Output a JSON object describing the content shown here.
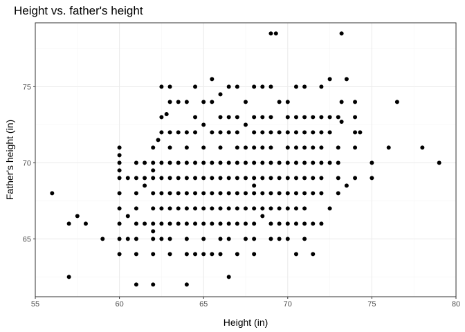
{
  "chart_data": {
    "type": "scatter",
    "title": "Height vs. father's height",
    "xlabel": "Height (in)",
    "ylabel": "Father's height (in)",
    "xlim": [
      55,
      80
    ],
    "ylim": [
      61.2,
      79.2
    ],
    "x_ticks": [
      55,
      60,
      65,
      70,
      75,
      80
    ],
    "y_ticks": [
      65,
      70,
      75
    ],
    "grid": true,
    "point_color": "#000000",
    "grid_major_color": "#ebebeb",
    "grid_minor_color": "#f5f5f5",
    "panel_border_color": "#333333",
    "points": [
      [
        56,
        68
      ],
      [
        57,
        66
      ],
      [
        57,
        62.5
      ],
      [
        57.5,
        66.5
      ],
      [
        58,
        66
      ],
      [
        59,
        65
      ],
      [
        60,
        71
      ],
      [
        60,
        70.5
      ],
      [
        60,
        70
      ],
      [
        60,
        69.5
      ],
      [
        60,
        69
      ],
      [
        60,
        68
      ],
      [
        60,
        67
      ],
      [
        60,
        66
      ],
      [
        60,
        65
      ],
      [
        60,
        64
      ],
      [
        60.5,
        69
      ],
      [
        60.5,
        66.5
      ],
      [
        60.5,
        65
      ],
      [
        61,
        70
      ],
      [
        61,
        69
      ],
      [
        61,
        68
      ],
      [
        61,
        67
      ],
      [
        61,
        66
      ],
      [
        61,
        65
      ],
      [
        61,
        64
      ],
      [
        61,
        62
      ],
      [
        61.5,
        70
      ],
      [
        61.5,
        69
      ],
      [
        61.5,
        68.5
      ],
      [
        61.5,
        66
      ],
      [
        62,
        71
      ],
      [
        62,
        70
      ],
      [
        62,
        69.5
      ],
      [
        62,
        69
      ],
      [
        62,
        68
      ],
      [
        62,
        67
      ],
      [
        62,
        66
      ],
      [
        62,
        65.5
      ],
      [
        62,
        65
      ],
      [
        62,
        64
      ],
      [
        62,
        62
      ],
      [
        62.3,
        71.5
      ],
      [
        62.5,
        75
      ],
      [
        62.5,
        73
      ],
      [
        62.5,
        72
      ],
      [
        62.5,
        70
      ],
      [
        62.5,
        69
      ],
      [
        62.5,
        68
      ],
      [
        62.5,
        67
      ],
      [
        62.5,
        66
      ],
      [
        62.5,
        65
      ],
      [
        62.8,
        73.2
      ],
      [
        63,
        75
      ],
      [
        63,
        74
      ],
      [
        63,
        72
      ],
      [
        63,
        71
      ],
      [
        63,
        70
      ],
      [
        63,
        69
      ],
      [
        63,
        68
      ],
      [
        63,
        67
      ],
      [
        63,
        66
      ],
      [
        63,
        65
      ],
      [
        63,
        64
      ],
      [
        63.5,
        74
      ],
      [
        63.5,
        72
      ],
      [
        63.5,
        70
      ],
      [
        63.5,
        69
      ],
      [
        63.5,
        68
      ],
      [
        63.5,
        67
      ],
      [
        63.5,
        66
      ],
      [
        64,
        74
      ],
      [
        64,
        72
      ],
      [
        64,
        71
      ],
      [
        64,
        70
      ],
      [
        64,
        69
      ],
      [
        64,
        68
      ],
      [
        64,
        67
      ],
      [
        64,
        66
      ],
      [
        64,
        65
      ],
      [
        64,
        64
      ],
      [
        64,
        62
      ],
      [
        64.5,
        75
      ],
      [
        64.5,
        73
      ],
      [
        64.5,
        72
      ],
      [
        64.5,
        70
      ],
      [
        64.5,
        69
      ],
      [
        64.5,
        68
      ],
      [
        64.5,
        67
      ],
      [
        64.5,
        66
      ],
      [
        64.5,
        64
      ],
      [
        65,
        74
      ],
      [
        65,
        72.5
      ],
      [
        65,
        71
      ],
      [
        65,
        70
      ],
      [
        65,
        69
      ],
      [
        65,
        68
      ],
      [
        65,
        67
      ],
      [
        65,
        66
      ],
      [
        65,
        65
      ],
      [
        65,
        64
      ],
      [
        65.5,
        75.5
      ],
      [
        65.5,
        74
      ],
      [
        65.5,
        72
      ],
      [
        65.5,
        70
      ],
      [
        65.5,
        69
      ],
      [
        65.5,
        68
      ],
      [
        65.5,
        67
      ],
      [
        65.5,
        66
      ],
      [
        65.5,
        64
      ],
      [
        66,
        74.5
      ],
      [
        66,
        73
      ],
      [
        66,
        72
      ],
      [
        66,
        71
      ],
      [
        66,
        70
      ],
      [
        66,
        69
      ],
      [
        66,
        68
      ],
      [
        66,
        67
      ],
      [
        66,
        66
      ],
      [
        66,
        65
      ],
      [
        66,
        64
      ],
      [
        66.5,
        75
      ],
      [
        66.5,
        73
      ],
      [
        66.5,
        72
      ],
      [
        66.5,
        70
      ],
      [
        66.5,
        69
      ],
      [
        66.5,
        68
      ],
      [
        66.5,
        67
      ],
      [
        66.5,
        66
      ],
      [
        66.5,
        65
      ],
      [
        66.5,
        62.5
      ],
      [
        67,
        75
      ],
      [
        67,
        73
      ],
      [
        67,
        72
      ],
      [
        67,
        71
      ],
      [
        67,
        70
      ],
      [
        67,
        69
      ],
      [
        67,
        68
      ],
      [
        67,
        67
      ],
      [
        67,
        66
      ],
      [
        67,
        64
      ],
      [
        67.5,
        74
      ],
      [
        67.5,
        72.5
      ],
      [
        67.5,
        71
      ],
      [
        67.5,
        70
      ],
      [
        67.5,
        69
      ],
      [
        67.5,
        68
      ],
      [
        67.5,
        67
      ],
      [
        67.5,
        66
      ],
      [
        67.5,
        65
      ],
      [
        68,
        75
      ],
      [
        68,
        73
      ],
      [
        68,
        72
      ],
      [
        68,
        71
      ],
      [
        68,
        70
      ],
      [
        68,
        69
      ],
      [
        68,
        68.5
      ],
      [
        68,
        68
      ],
      [
        68,
        67
      ],
      [
        68,
        66
      ],
      [
        68,
        65
      ],
      [
        68,
        64
      ],
      [
        68.5,
        75
      ],
      [
        68.5,
        73
      ],
      [
        68.5,
        72
      ],
      [
        68.5,
        71
      ],
      [
        68.5,
        70
      ],
      [
        68.5,
        69
      ],
      [
        68.5,
        68
      ],
      [
        68.5,
        67
      ],
      [
        68.5,
        66.5
      ],
      [
        69,
        78.5
      ],
      [
        69,
        75
      ],
      [
        69,
        73
      ],
      [
        69,
        72
      ],
      [
        69,
        71
      ],
      [
        69,
        70
      ],
      [
        69,
        69
      ],
      [
        69,
        68
      ],
      [
        69,
        67
      ],
      [
        69,
        66
      ],
      [
        69,
        65
      ],
      [
        69.3,
        78.5
      ],
      [
        69.5,
        74
      ],
      [
        69.5,
        72
      ],
      [
        69.5,
        70
      ],
      [
        69.5,
        69
      ],
      [
        69.5,
        68
      ],
      [
        69.5,
        67
      ],
      [
        69.5,
        66
      ],
      [
        69.5,
        65
      ],
      [
        70,
        74
      ],
      [
        70,
        73
      ],
      [
        70,
        72
      ],
      [
        70,
        71
      ],
      [
        70,
        70
      ],
      [
        70,
        69
      ],
      [
        70,
        68
      ],
      [
        70,
        67
      ],
      [
        70,
        66
      ],
      [
        70,
        65
      ],
      [
        70.5,
        75
      ],
      [
        70.5,
        73
      ],
      [
        70.5,
        72
      ],
      [
        70.5,
        71
      ],
      [
        70.5,
        70
      ],
      [
        70.5,
        69
      ],
      [
        70.5,
        68
      ],
      [
        70.5,
        67
      ],
      [
        70.5,
        66
      ],
      [
        70.5,
        64
      ],
      [
        71,
        75
      ],
      [
        71,
        73
      ],
      [
        71,
        72
      ],
      [
        71,
        71
      ],
      [
        71,
        70
      ],
      [
        71,
        69
      ],
      [
        71,
        68
      ],
      [
        71,
        67
      ],
      [
        71,
        66
      ],
      [
        71,
        65
      ],
      [
        71.5,
        73
      ],
      [
        71.5,
        72
      ],
      [
        71.5,
        71
      ],
      [
        71.5,
        70
      ],
      [
        71.5,
        69
      ],
      [
        71.5,
        68
      ],
      [
        71.5,
        66
      ],
      [
        71.5,
        64
      ],
      [
        72,
        75
      ],
      [
        72,
        73
      ],
      [
        72,
        72
      ],
      [
        72,
        71
      ],
      [
        72,
        70
      ],
      [
        72,
        69
      ],
      [
        72,
        68
      ],
      [
        72,
        66
      ],
      [
        72.5,
        75.5
      ],
      [
        72.5,
        73
      ],
      [
        72.5,
        72
      ],
      [
        72.5,
        70
      ],
      [
        72.5,
        67
      ],
      [
        73,
        73
      ],
      [
        73,
        71
      ],
      [
        73,
        70
      ],
      [
        73,
        69
      ],
      [
        73,
        68
      ],
      [
        73.2,
        78.5
      ],
      [
        73.2,
        74
      ],
      [
        73.2,
        72.7
      ],
      [
        73.5,
        75.5
      ],
      [
        73.5,
        68.5
      ],
      [
        74,
        74
      ],
      [
        74,
        73
      ],
      [
        74,
        72
      ],
      [
        74,
        71
      ],
      [
        74,
        69
      ],
      [
        74.3,
        72
      ],
      [
        75,
        70
      ],
      [
        75,
        69
      ],
      [
        76,
        71
      ],
      [
        76.5,
        74
      ],
      [
        78,
        71
      ],
      [
        79,
        70
      ]
    ]
  }
}
